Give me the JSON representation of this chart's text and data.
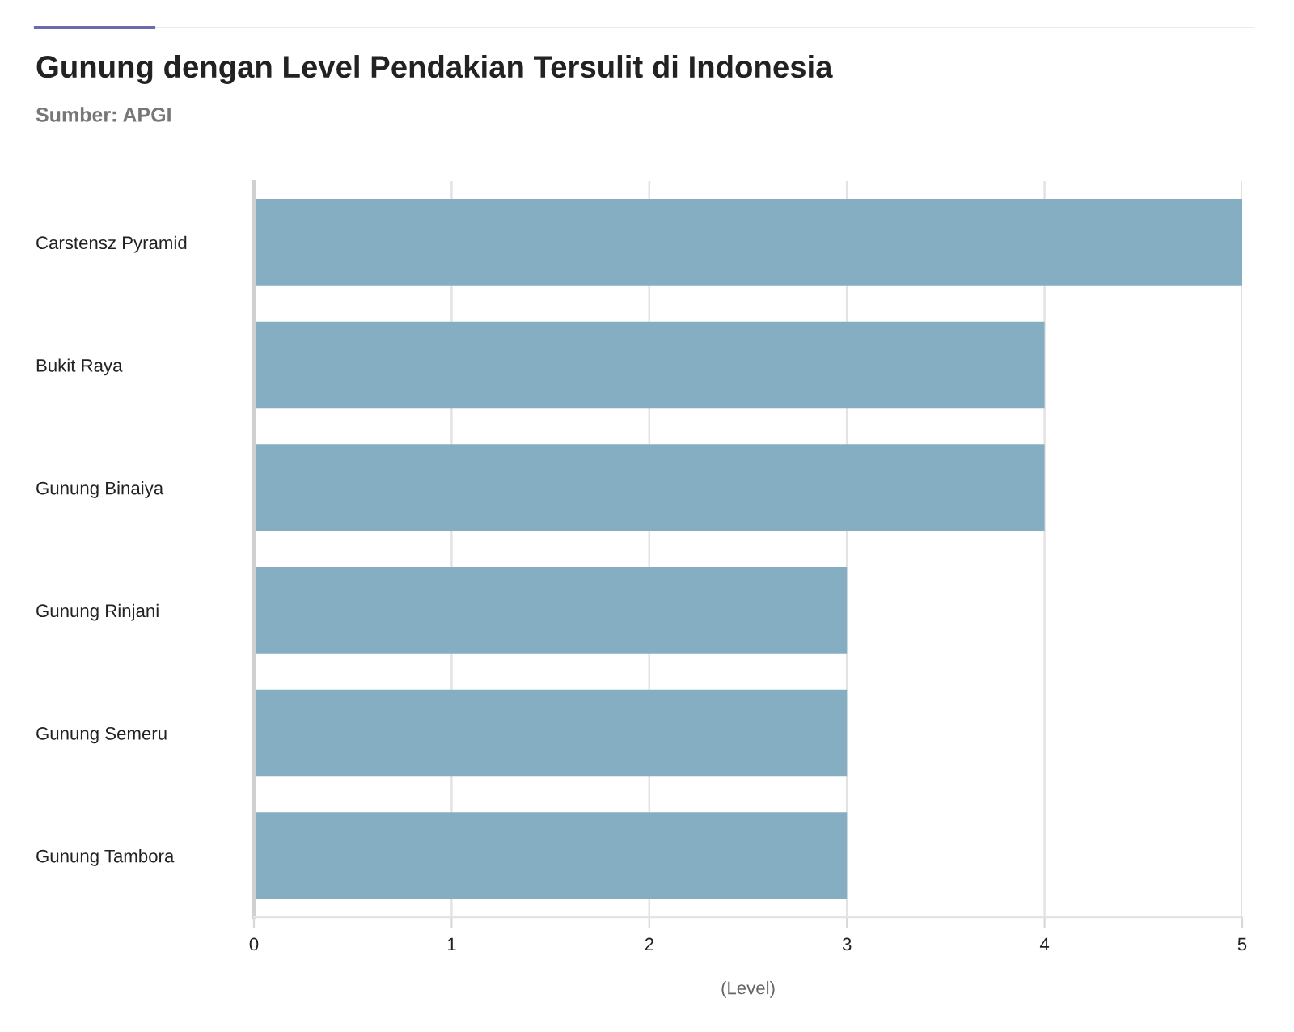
{
  "chart_data": {
    "type": "bar",
    "orientation": "horizontal",
    "title": "Gunung dengan Level Pendakian Tersulit di Indonesia",
    "subtitle": "Sumber: APGI",
    "xlabel": "(Level)",
    "categories": [
      "Carstensz Pyramid",
      "Bukit Raya",
      "Gunung Binaiya",
      "Gunung Rinjani",
      "Gunung Semeru",
      "Gunung Tambora"
    ],
    "values": [
      5,
      4,
      4,
      3,
      3,
      3
    ],
    "color": "#86aec2",
    "xlim": [
      0,
      5
    ],
    "xticks": [
      0,
      1,
      2,
      3,
      4,
      5
    ],
    "grid": "x"
  }
}
